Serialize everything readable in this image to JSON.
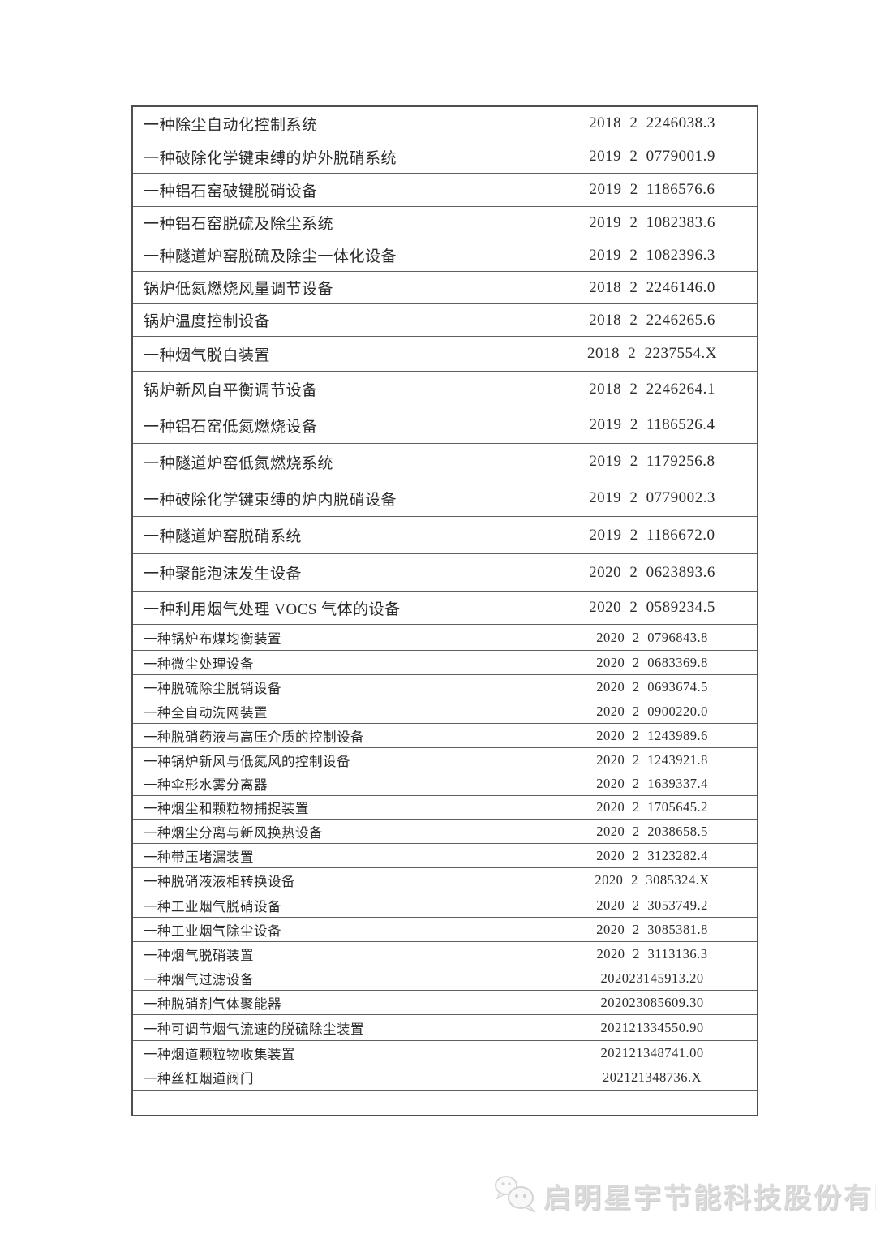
{
  "table": {
    "border_color": "#4f4f4f",
    "grid_color": "#5f5f5f",
    "text_color": "#2b2b2b",
    "columns": [
      "patent-name",
      "patent-number"
    ],
    "rows": [
      {
        "name": "一种除尘自动化控制系统",
        "number": "2018 2 2246038.3"
      },
      {
        "name": "一种破除化学键束缚的炉外脱硝系统",
        "number": "2019 2 0779001.9"
      },
      {
        "name": "一种铝石窑破键脱硝设备",
        "number": "2019 2 1186576.6"
      },
      {
        "name": "一种铝石窑脱硫及除尘系统",
        "number": "2019 2 1082383.6"
      },
      {
        "name": "一种隧道炉窑脱硫及除尘一体化设备",
        "number": "2019 2 1082396.3"
      },
      {
        "name": "锅炉低氮燃烧风量调节设备",
        "number": "2018 2 2246146.0"
      },
      {
        "name": "锅炉温度控制设备",
        "number": "2018 2 2246265.6"
      },
      {
        "name": "一种烟气脱白装置",
        "number": "2018 2 2237554.X"
      },
      {
        "name": "锅炉新风自平衡调节设备",
        "number": "2018 2 2246264.1"
      },
      {
        "name": "一种铝石窑低氮燃烧设备",
        "number": "2019 2 1186526.4"
      },
      {
        "name": "一种隧道炉窑低氮燃烧系统",
        "number": "2019 2 1179256.8"
      },
      {
        "name": "一种破除化学键束缚的炉内脱硝设备",
        "number": "2019 2 0779002.3"
      },
      {
        "name": "一种隧道炉窑脱硝系统",
        "number": "2019 2 1186672.0"
      },
      {
        "name": "一种聚能泡沫发生设备",
        "number": "2020 2 0623893.6"
      },
      {
        "name": "一种利用烟气处理 VOCS 气体的设备",
        "number": "2020 2 0589234.5"
      },
      {
        "name": "一种锅炉布煤均衡装置",
        "number": "2020 2 0796843.8"
      },
      {
        "name": "一种微尘处理设备",
        "number": "2020 2 0683369.8"
      },
      {
        "name": "一种脱硫除尘脱销设备",
        "number": "2020 2 0693674.5"
      },
      {
        "name": "一种全自动洗网装置",
        "number": "2020 2 0900220.0"
      },
      {
        "name": "一种脱硝药液与高压介质的控制设备",
        "number": "2020 2 1243989.6"
      },
      {
        "name": "一种锅炉新风与低氮风的控制设备",
        "number": "2020 2 1243921.8"
      },
      {
        "name": "一种伞形水雾分离器",
        "number": "2020 2 1639337.4"
      },
      {
        "name": "一种烟尘和颗粒物捕捉装置",
        "number": "2020 2 1705645.2"
      },
      {
        "name": "一种烟尘分离与新风换热设备",
        "number": "2020 2 2038658.5"
      },
      {
        "name": "一种带压堵漏装置",
        "number": "2020 2 3123282.4"
      },
      {
        "name": "一种脱硝液液相转换设备",
        "number": "2020 2 3085324.X"
      },
      {
        "name": "一种工业烟气脱硝设备",
        "number": "2020 2 3053749.2"
      },
      {
        "name": "一种工业烟气除尘设备",
        "number": "2020 2 3085381.8"
      },
      {
        "name": "一种烟气脱硝装置",
        "number": "2020 2 3113136.3"
      },
      {
        "name": "一种烟气过滤设备",
        "number": "202023145913.20"
      },
      {
        "name": "一种脱硝剂气体聚能器",
        "number": "202023085609.30"
      },
      {
        "name": "一种可调节烟气流速的脱硫除尘装置",
        "number": "202121334550.90"
      },
      {
        "name": "一种烟道颗粒物收集装置",
        "number": "202121348741.00"
      },
      {
        "name": "一种丝杠烟道阀门",
        "number": "202121348736.X"
      },
      {
        "name": "",
        "number": ""
      }
    ]
  },
  "footer": {
    "company": "启明星宇节能科技股份有限公司",
    "icon": "wechat-icon",
    "watermark_color": "#dadada"
  }
}
